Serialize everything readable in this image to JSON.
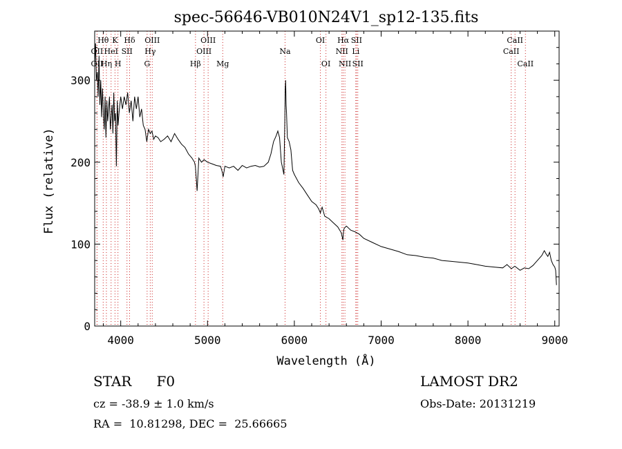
{
  "chart_data": {
    "type": "line",
    "title": "spec-56646-VB010N24V1_sp12-135.fits",
    "xlabel": "Wavelength (Å)",
    "ylabel": "Flux (relative)",
    "xlim": [
      3700,
      9050
    ],
    "ylim": [
      0,
      360
    ],
    "xticks": [
      4000,
      5000,
      6000,
      7000,
      8000,
      9000
    ],
    "yticks": [
      0,
      100,
      200,
      300
    ],
    "grid": false,
    "series": [
      {
        "color": "#000000",
        "x": [
          3700,
          3710,
          3720,
          3730,
          3740,
          3750,
          3760,
          3770,
          3780,
          3790,
          3800,
          3810,
          3820,
          3830,
          3840,
          3850,
          3860,
          3870,
          3880,
          3890,
          3900,
          3910,
          3920,
          3930,
          3940,
          3950,
          3960,
          3970,
          3980,
          3990,
          4000,
          4020,
          4040,
          4060,
          4080,
          4100,
          4120,
          4140,
          4160,
          4180,
          4200,
          4220,
          4240,
          4260,
          4280,
          4300,
          4320,
          4340,
          4360,
          4380,
          4400,
          4430,
          4460,
          4500,
          4540,
          4580,
          4620,
          4660,
          4700,
          4740,
          4780,
          4820,
          4850,
          4860,
          4870,
          4880,
          4900,
          4930,
          4960,
          5000,
          5050,
          5100,
          5150,
          5170,
          5180,
          5200,
          5250,
          5300,
          5350,
          5400,
          5450,
          5500,
          5550,
          5600,
          5650,
          5700,
          5730,
          5760,
          5790,
          5810,
          5830,
          5850,
          5870,
          5880,
          5890,
          5895,
          5900,
          5905,
          5910,
          5920,
          5940,
          5960,
          5980,
          6000,
          6050,
          6100,
          6150,
          6200,
          6250,
          6280,
          6300,
          6310,
          6320,
          6350,
          6400,
          6450,
          6500,
          6540,
          6560,
          6563,
          6570,
          6580,
          6600,
          6650,
          6700,
          6750,
          6800,
          6900,
          7000,
          7100,
          7200,
          7300,
          7400,
          7500,
          7600,
          7700,
          7800,
          7900,
          8000,
          8100,
          8200,
          8300,
          8400,
          8450,
          8500,
          8540,
          8600,
          8650,
          8700,
          8750,
          8800,
          8850,
          8880,
          8900,
          8920,
          8940,
          8960,
          8980,
          9000,
          9010,
          9020
        ],
        "y": [
          320,
          345,
          300,
          310,
          280,
          330,
          270,
          300,
          255,
          290,
          260,
          240,
          280,
          230,
          275,
          250,
          265,
          280,
          240,
          255,
          270,
          235,
          285,
          250,
          260,
          195,
          275,
          245,
          260,
          270,
          280,
          265,
          280,
          270,
          285,
          260,
          275,
          250,
          280,
          265,
          280,
          255,
          265,
          245,
          240,
          225,
          240,
          235,
          238,
          228,
          232,
          230,
          225,
          228,
          232,
          225,
          235,
          228,
          222,
          218,
          210,
          205,
          200,
          195,
          180,
          165,
          205,
          200,
          203,
          200,
          198,
          196,
          195,
          188,
          182,
          195,
          193,
          195,
          190,
          196,
          193,
          195,
          196,
          194,
          195,
          200,
          210,
          225,
          232,
          238,
          230,
          200,
          190,
          185,
          250,
          290,
          300,
          270,
          260,
          230,
          225,
          215,
          190,
          185,
          175,
          168,
          160,
          152,
          148,
          143,
          138,
          142,
          145,
          134,
          131,
          126,
          121,
          114,
          105,
          112,
          118,
          120,
          122,
          117,
          115,
          112,
          107,
          102,
          97,
          94,
          91,
          87,
          86,
          84,
          83,
          80,
          79,
          78,
          77,
          75,
          73,
          72,
          71,
          75,
          70,
          73,
          68,
          71,
          70,
          74,
          80,
          86,
          92,
          88,
          85,
          90,
          80,
          75,
          72,
          68,
          50
        ]
      }
    ],
    "lines": [
      {
        "name": "Hθ",
        "x": 3798,
        "row": 1
      },
      {
        "name": "K",
        "x": 3934,
        "row": 1
      },
      {
        "name": "Hδ",
        "x": 4102,
        "row": 1
      },
      {
        "name": "OIII",
        "x": 4363,
        "row": 1
      },
      {
        "name": "OIII",
        "x": 5007,
        "row": 1
      },
      {
        "name": "OI",
        "x": 6300,
        "row": 1
      },
      {
        "name": "Hα",
        "x": 6563,
        "row": 1
      },
      {
        "name": "SII",
        "x": 6716,
        "row": 1
      },
      {
        "name": "CaII",
        "x": 8542,
        "row": 1
      },
      {
        "name": "OII",
        "x": 3727,
        "row": 2
      },
      {
        "name": "HeI",
        "x": 3889,
        "row": 2
      },
      {
        "name": "SII",
        "x": 4072,
        "row": 2
      },
      {
        "name": "Hγ",
        "x": 4340,
        "row": 2
      },
      {
        "name": "OIII",
        "x": 4959,
        "row": 2
      },
      {
        "name": "Na",
        "x": 5893,
        "row": 2
      },
      {
        "name": "NII",
        "x": 6548,
        "row": 2
      },
      {
        "name": "Li",
        "x": 6708,
        "row": 2
      },
      {
        "name": "CaII",
        "x": 8498,
        "row": 2
      },
      {
        "name": "OII",
        "x": 3727,
        "row": 3
      },
      {
        "name": "Hη",
        "x": 3835,
        "row": 3
      },
      {
        "name": "H",
        "x": 3968,
        "row": 3
      },
      {
        "name": "G",
        "x": 4304,
        "row": 3
      },
      {
        "name": "Hβ",
        "x": 4861,
        "row": 3
      },
      {
        "name": "Mg",
        "x": 5175,
        "row": 3
      },
      {
        "name": "OI",
        "x": 6364,
        "row": 3
      },
      {
        "name": "NII",
        "x": 6583,
        "row": 3
      },
      {
        "name": "SII",
        "x": 6731,
        "row": 3
      },
      {
        "name": "CaII",
        "x": 8662,
        "row": 3
      }
    ]
  },
  "info": {
    "class_label": "STAR",
    "subclass": "F0",
    "redshift": "cz = -38.9 ± 1.0 km/s",
    "coords": "RA =  10.81298, DEC =  25.66665",
    "survey": "LAMOST DR2",
    "obs_date": "Obs-Date: 20131219"
  }
}
